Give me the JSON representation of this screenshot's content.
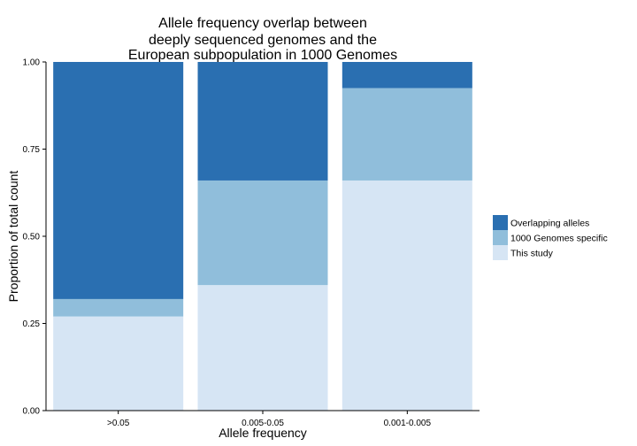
{
  "chart_data": {
    "type": "bar",
    "stacked": true,
    "title": [
      "Allele frequency overlap between",
      "deeply sequenced genomes and the",
      "European subpopulation in 1000 Genomes"
    ],
    "xlabel": "Allele frequency",
    "ylabel": "Proportion of total count",
    "categories": [
      ">0.05",
      "0.005-0.05",
      "0.001-0.005"
    ],
    "ylim": [
      0,
      1
    ],
    "yticks": [
      "0.00",
      "0.25",
      "0.50",
      "0.75",
      "1.00"
    ],
    "series": [
      {
        "name": "This study",
        "color": "#d6e5f4",
        "values": [
          0.27,
          0.36,
          0.66
        ]
      },
      {
        "name": "1000 Genomes specific",
        "color": "#90bedb",
        "values": [
          0.05,
          0.3,
          0.265
        ]
      },
      {
        "name": "Overlapping alleles",
        "color": "#2a6fb1",
        "values": [
          0.68,
          0.34,
          0.075
        ]
      }
    ],
    "legend": {
      "position": "right",
      "order": [
        "Overlapping alleles",
        "1000 Genomes specific",
        "This study"
      ]
    },
    "grid": false
  }
}
